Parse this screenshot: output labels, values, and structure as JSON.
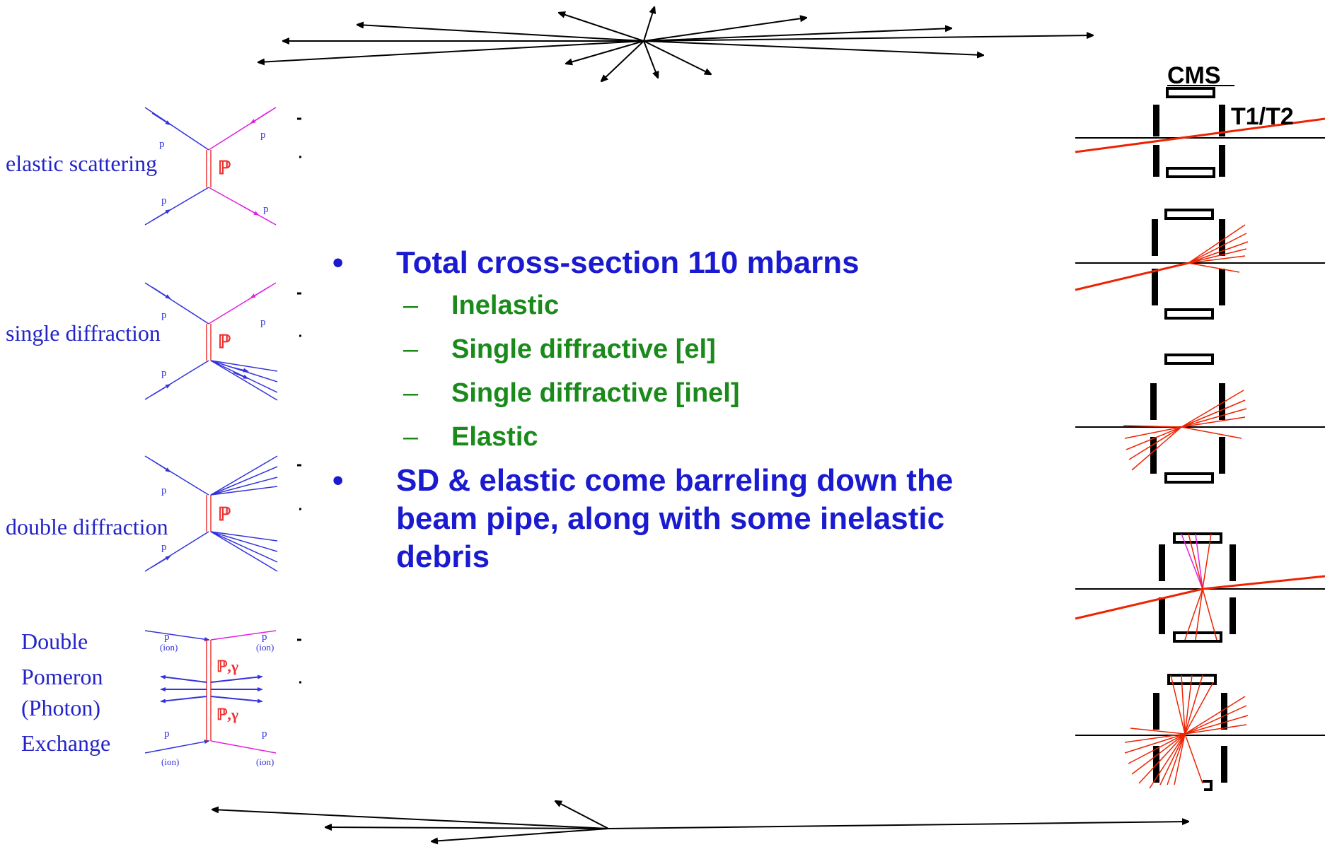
{
  "diagrams": {
    "elastic": {
      "label": "elastic scattering",
      "particle": "p",
      "exchange": "ℙ"
    },
    "single": {
      "label": "single diffraction",
      "particle": "p",
      "exchange": "ℙ"
    },
    "double": {
      "label": "double diffraction",
      "particle": "p",
      "exchange": "ℙ"
    },
    "dpe": {
      "label_lines": [
        "Double",
        "Pomeron",
        "(Photon)",
        "Exchange"
      ],
      "particle": "p",
      "ion_tag": "(ion)",
      "exchange": "ℙ,γ"
    }
  },
  "detector": {
    "title": "CMS",
    "subtitle": "T1/T2"
  },
  "bullets": [
    {
      "text": "Total cross-section 110 mbarns",
      "sub": [
        "Inelastic",
        "Single diffractive [el]",
        "Single diffractive [inel]",
        "Elastic"
      ]
    },
    {
      "text": "SD & elastic come barreling down the beam pipe, along with some inelastic debris",
      "sub": []
    }
  ],
  "colors": {
    "bullet": "#1a1ad0",
    "sub_bullet": "#1a8a1a",
    "diagram_blue": "#3333dd",
    "diagram_magenta": "#e020e0",
    "pomeron": "#ee3333",
    "track": "#ee2200"
  }
}
